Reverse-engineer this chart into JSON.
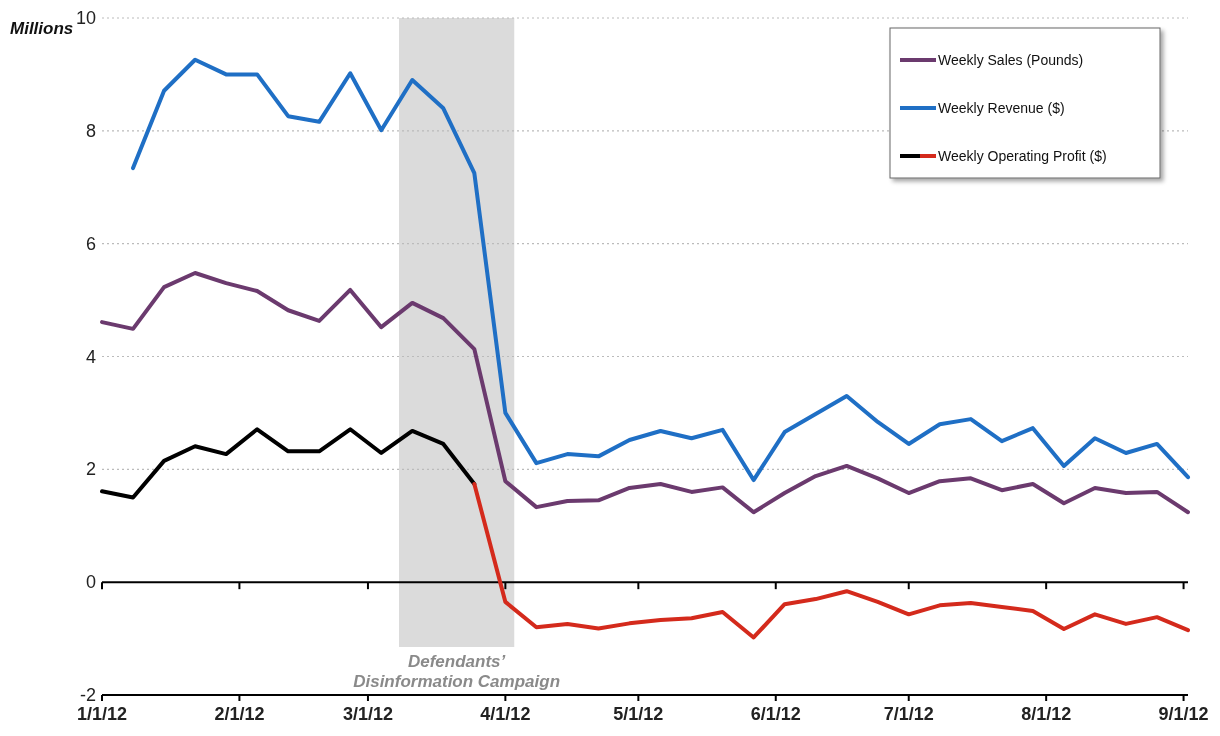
{
  "chart_data": {
    "type": "line",
    "ylabel": "Millions",
    "x": [
      "2012-01-01",
      "2012-01-08",
      "2012-01-15",
      "2012-01-22",
      "2012-01-29",
      "2012-02-05",
      "2012-02-12",
      "2012-02-19",
      "2012-02-26",
      "2012-03-04",
      "2012-03-11",
      "2012-03-18",
      "2012-03-25",
      "2012-04-01",
      "2012-04-08",
      "2012-04-15",
      "2012-04-22",
      "2012-04-29",
      "2012-05-06",
      "2012-05-13",
      "2012-05-20",
      "2012-05-27",
      "2012-06-03",
      "2012-06-10",
      "2012-06-17",
      "2012-06-24",
      "2012-07-01",
      "2012-07-08",
      "2012-07-15",
      "2012-07-22",
      "2012-07-29",
      "2012-08-05",
      "2012-08-12",
      "2012-08-19",
      "2012-08-26",
      "2012-09-02"
    ],
    "series": [
      {
        "name": "Weekly Sales (Pounds)",
        "color": "#6b3a6e",
        "values": [
          4.61,
          4.49,
          5.23,
          5.48,
          5.3,
          5.16,
          4.82,
          4.63,
          5.18,
          4.52,
          4.95,
          4.68,
          4.13,
          1.79,
          1.33,
          1.44,
          1.45,
          1.67,
          1.74,
          1.6,
          1.68,
          1.24,
          1.58,
          1.88,
          2.06,
          1.84,
          1.58,
          1.79,
          1.84,
          1.63,
          1.74,
          1.4,
          1.67,
          1.58,
          1.6,
          1.24
        ]
      },
      {
        "name": "Weekly Revenue ($)",
        "color": "#1f6fc5",
        "values": [
          null,
          7.34,
          8.71,
          9.26,
          9.0,
          9.0,
          8.26,
          8.16,
          9.02,
          8.01,
          8.9,
          8.4,
          7.25,
          3.0,
          2.11,
          2.27,
          2.23,
          2.52,
          2.68,
          2.55,
          2.7,
          1.81,
          2.66,
          2.98,
          3.3,
          2.84,
          2.45,
          2.8,
          2.89,
          2.5,
          2.73,
          2.06,
          2.55,
          2.29,
          2.45,
          1.86
        ]
      },
      {
        "name": "Weekly Operating Profit ($)",
        "color": "#000000",
        "values": [
          1.61,
          1.5,
          2.15,
          2.41,
          2.27,
          2.71,
          2.32,
          2.32,
          2.71,
          2.29,
          2.68,
          2.45,
          1.74,
          null,
          null,
          null,
          null,
          null,
          null,
          null,
          null,
          null,
          null,
          null,
          null,
          null,
          null,
          null,
          null,
          null,
          null,
          null,
          null,
          null,
          null,
          null
        ]
      },
      {
        "color": "#d42a1c",
        "values": [
          null,
          null,
          null,
          null,
          null,
          null,
          null,
          null,
          null,
          null,
          null,
          null,
          1.74,
          -0.35,
          -0.8,
          -0.74,
          -0.82,
          -0.73,
          -0.67,
          -0.64,
          -0.53,
          -0.98,
          -0.39,
          -0.3,
          -0.16,
          -0.35,
          -0.57,
          -0.41,
          -0.37,
          -0.44,
          -0.51,
          -0.83,
          -0.57,
          -0.74,
          -0.62,
          -0.85
        ]
      }
    ],
    "xlim": [
      "2012-01-01",
      "2012-09-02"
    ],
    "xticks": [
      {
        "value": "2012-01-01",
        "label": "1/1/12"
      },
      {
        "value": "2012-02-01",
        "label": "2/1/12"
      },
      {
        "value": "2012-03-01",
        "label": "3/1/12"
      },
      {
        "value": "2012-04-01",
        "label": "4/1/12"
      },
      {
        "value": "2012-05-01",
        "label": "5/1/12"
      },
      {
        "value": "2012-06-01",
        "label": "6/1/12"
      },
      {
        "value": "2012-07-01",
        "label": "7/1/12"
      },
      {
        "value": "2012-08-01",
        "label": "8/1/12"
      },
      {
        "value": "2012-09-01",
        "label": "9/1/12"
      }
    ],
    "ylim": [
      -2,
      10
    ],
    "yticks": [
      -2,
      0,
      2,
      4,
      6,
      8,
      10
    ],
    "bands": [
      {
        "axis": "x",
        "from": "2012-03-08",
        "to": "2012-04-03",
        "label": "Defendants’ Disinformation Campaign",
        "color": "#d9d9d9"
      }
    ],
    "grid": "y",
    "legend": "top right",
    "marker": "none",
    "line_style": "solid"
  }
}
